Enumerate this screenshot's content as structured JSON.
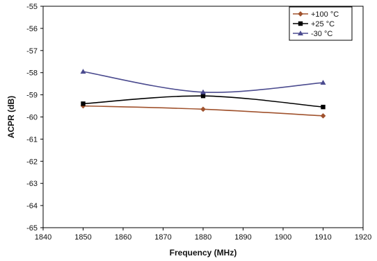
{
  "chart_data": {
    "type": "line",
    "title": "",
    "xlabel": "Frequency (MHz)",
    "ylabel": "ACPR (dB)",
    "xlim": [
      1840,
      1920
    ],
    "ylim": [
      -65,
      -55
    ],
    "x_ticks": [
      1840,
      1850,
      1860,
      1870,
      1880,
      1890,
      1900,
      1910,
      1920
    ],
    "y_ticks": [
      -55,
      -56,
      -57,
      -58,
      -59,
      -60,
      -61,
      -62,
      -63,
      -64,
      -65
    ],
    "grid": "horizontal",
    "legend_position": "top-right",
    "series": [
      {
        "name": "+100 °C",
        "color": "#A0522D",
        "marker": "diamond",
        "x": [
          1850,
          1880,
          1910
        ],
        "y": [
          -59.5,
          -59.65,
          -59.95
        ]
      },
      {
        "name": "+25 °C",
        "color": "#000000",
        "marker": "square",
        "x": [
          1850,
          1880,
          1910
        ],
        "y": [
          -59.4,
          -59.05,
          -59.55
        ]
      },
      {
        "name": "-30 °C",
        "color": "#4B4B8F",
        "marker": "triangle",
        "x": [
          1850,
          1880,
          1910
        ],
        "y": [
          -57.95,
          -58.88,
          -58.45
        ]
      }
    ]
  }
}
